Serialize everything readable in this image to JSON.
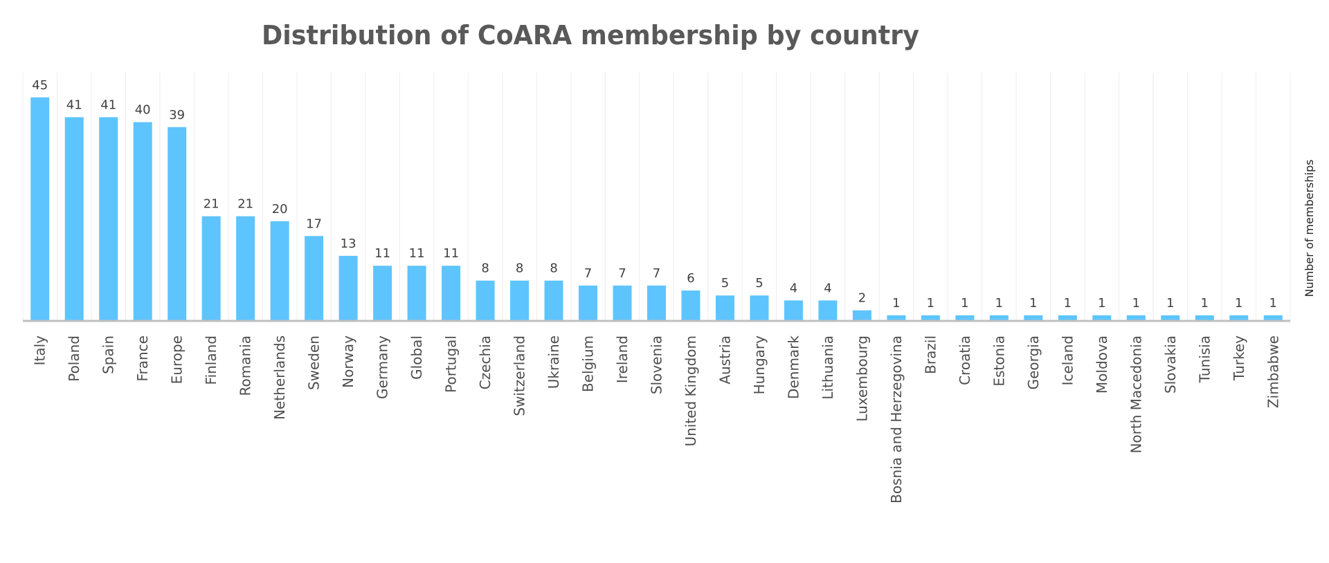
{
  "chart_data": {
    "type": "bar",
    "title": "Distribution of CoARA membership by country",
    "xlabel": "",
    "ylabel": "Number of memberships",
    "ylim": [
      0,
      50
    ],
    "grid": "vertical",
    "bar_color": "#5ec4fd",
    "categories": [
      "Italy",
      "Poland",
      "Spain",
      "France",
      "Europe",
      "Finland",
      "Romania",
      "Netherlands",
      "Sweden",
      "Norway",
      "Germany",
      "Global",
      "Portugal",
      "Czechia",
      "Switzerland",
      "Ukraine",
      "Belgium",
      "Ireland",
      "Slovenia",
      "United Kingdom",
      "Austria",
      "Hungary",
      "Denmark",
      "Lithuania",
      "Luxembourg",
      "Bosnia and Herzegovina",
      "Brazil",
      "Croatia",
      "Estonia",
      "Georgia",
      "Iceland",
      "Moldova",
      "North Macedonia",
      "Slovakia",
      "Tunisia",
      "Turkey",
      "Zimbabwe"
    ],
    "values": [
      45,
      41,
      41,
      40,
      39,
      21,
      21,
      20,
      17,
      13,
      11,
      11,
      11,
      8,
      8,
      8,
      7,
      7,
      7,
      6,
      5,
      5,
      4,
      4,
      2,
      1,
      1,
      1,
      1,
      1,
      1,
      1,
      1,
      1,
      1,
      1,
      1
    ]
  }
}
